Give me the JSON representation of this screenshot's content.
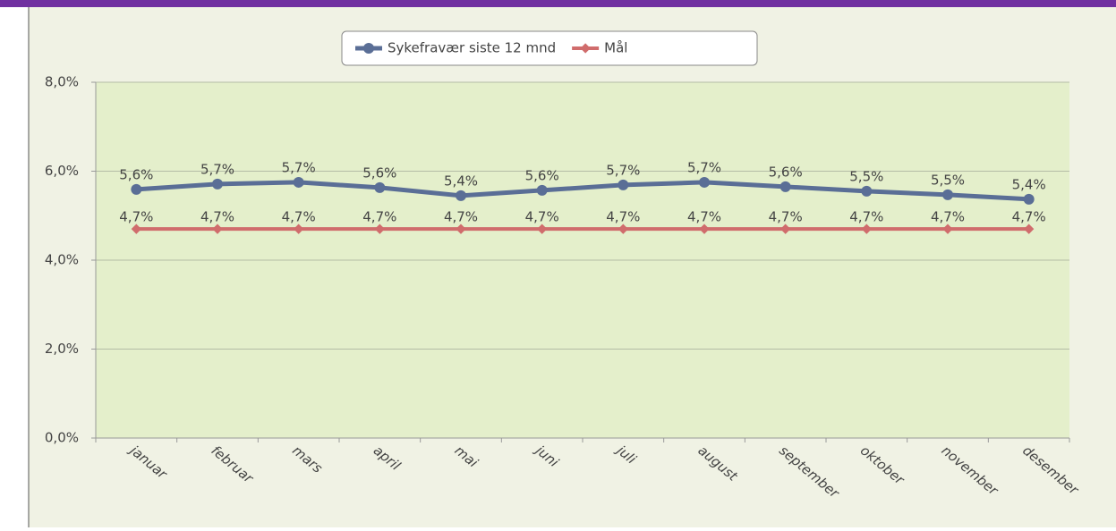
{
  "chart_data": {
    "type": "line",
    "categories": [
      "januar",
      "februar",
      "mars",
      "april",
      "mai",
      "juni",
      "juli",
      "august",
      "september",
      "oktober",
      "november",
      "desember"
    ],
    "series": [
      {
        "name": "Sykefravær siste 12 mnd",
        "color": "#5a6e96",
        "values": [
          5.59,
          5.71,
          5.75,
          5.63,
          5.45,
          5.57,
          5.69,
          5.75,
          5.65,
          5.55,
          5.47,
          5.37
        ],
        "value_labels": [
          "5,6%",
          "5,7%",
          "5,7%",
          "5,6%",
          "5,4%",
          "5,6%",
          "5,7%",
          "5,7%",
          "5,6%",
          "5,5%",
          "5,5%",
          "5,4%"
        ]
      },
      {
        "name": "Mål",
        "color": "#d06c6c",
        "values": [
          4.7,
          4.7,
          4.7,
          4.7,
          4.7,
          4.7,
          4.7,
          4.7,
          4.7,
          4.7,
          4.7,
          4.7
        ],
        "value_labels": [
          "4,7%",
          "4,7%",
          "4,7%",
          "4,7%",
          "4,7%",
          "4,7%",
          "4,7%",
          "4,7%",
          "4,7%",
          "4,7%",
          "4,7%",
          "4,7%"
        ]
      }
    ],
    "ylim": [
      0,
      8
    ],
    "yticks": [
      {
        "value": 0,
        "label": "0,0%"
      },
      {
        "value": 2,
        "label": "2,0%"
      },
      {
        "value": 4,
        "label": "4,0%"
      },
      {
        "value": 6,
        "label": "6,0%"
      },
      {
        "value": 8,
        "label": "8,0%"
      }
    ],
    "grid": true,
    "legend": "top"
  }
}
